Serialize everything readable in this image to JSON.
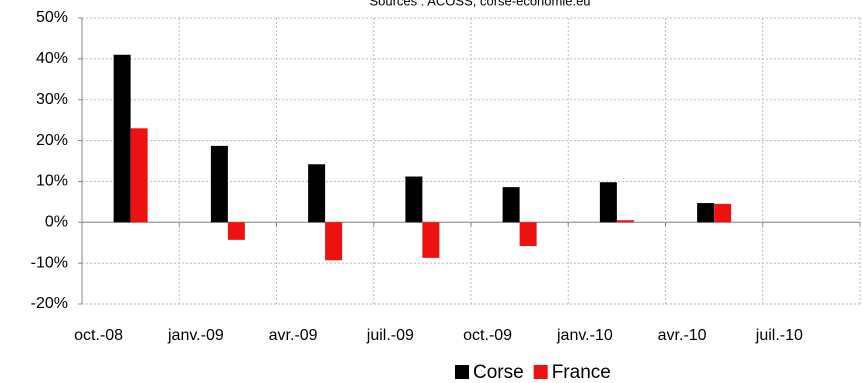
{
  "chart_data": {
    "type": "bar",
    "subtitle": "Sources : ACOSS, corse-economie.eu",
    "categories": [
      "oct.-08",
      "janv.-09",
      "avr.-09",
      "juil.-09",
      "oct.-09",
      "janv.-10",
      "avr.-10",
      "juil.-10"
    ],
    "series": [
      {
        "name": "Corse",
        "color": "#000000",
        "values": [
          41,
          18.7,
          14.2,
          11.2,
          8.6,
          9.8,
          4.7,
          null
        ]
      },
      {
        "name": "France",
        "color": "#ee1111",
        "values": [
          23,
          -4.3,
          -9.3,
          -8.7,
          -5.8,
          0.5,
          4.5,
          null
        ]
      }
    ],
    "ylim": [
      -20,
      50
    ],
    "yticks": [
      {
        "value": -20,
        "label": "-20%"
      },
      {
        "value": -10,
        "label": "-10%"
      },
      {
        "value": 0,
        "label": "0%"
      },
      {
        "value": 10,
        "label": "10%"
      },
      {
        "value": 20,
        "label": "20%"
      },
      {
        "value": 30,
        "label": "30%"
      },
      {
        "value": 40,
        "label": "40%"
      },
      {
        "value": 50,
        "label": "50%"
      }
    ],
    "grid": true
  }
}
